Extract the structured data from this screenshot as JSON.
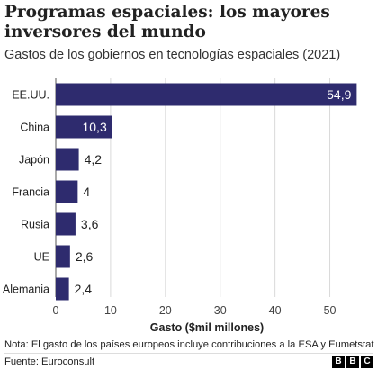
{
  "header": {
    "title": "Programas espaciales: los mayores inversores del mundo",
    "subtitle": "Gastos de los gobiernos en tecnologías espaciales (2021)"
  },
  "footer": {
    "note": "Nota: El gasto de los países europeos incluye contribuciones a la ESA y Eumetstat",
    "source": "Fuente: Euroconsult",
    "logo_letters": [
      "B",
      "B",
      "C"
    ]
  },
  "colors": {
    "bar": "#2e2b6e",
    "bar_label_inside": "#ffffff",
    "bar_label_outside": "#222222",
    "grid": "#d9d9d9",
    "axis": "#555555"
  },
  "chart_data": {
    "type": "bar",
    "orientation": "horizontal",
    "categories": [
      "EE.UU.",
      "China",
      "Japón",
      "Francia",
      "Rusia",
      "UE",
      "Alemania"
    ],
    "values": [
      54.9,
      10.3,
      4.2,
      4,
      3.6,
      2.6,
      2.4
    ],
    "value_labels": [
      "54,9",
      "10,3",
      "4,2",
      "4",
      "3,6",
      "2,6",
      "2,4"
    ],
    "xlabel": "Gasto ($mil millones)",
    "xlim": [
      0,
      55
    ],
    "xticks": [
      0,
      10,
      20,
      30,
      40,
      50
    ],
    "grid": true
  }
}
